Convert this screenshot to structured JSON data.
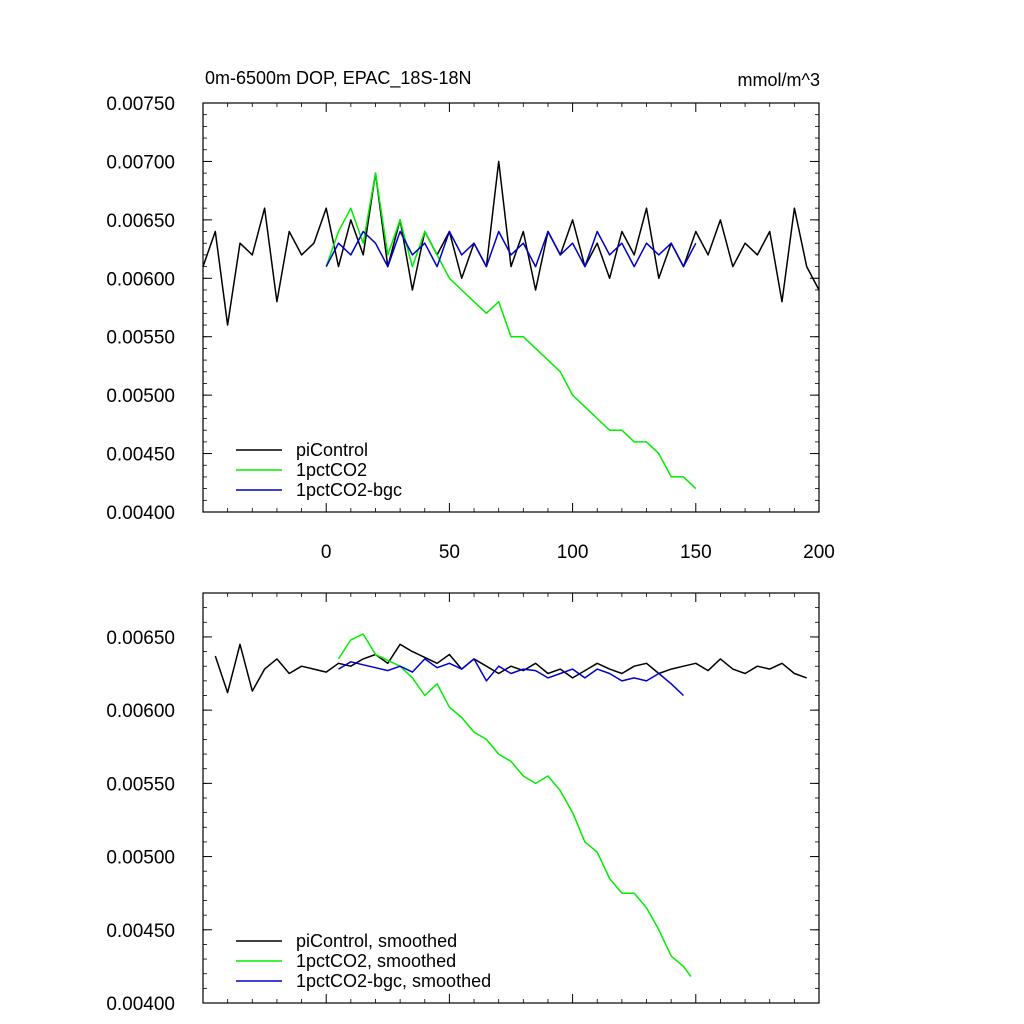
{
  "chart_data": [
    {
      "type": "line",
      "title": "0m-6500m DOP, EPAC_18S-18N",
      "units": "mmol/m^3",
      "xlabel": "",
      "ylabel": "",
      "xlim": [
        -50,
        200
      ],
      "ylim": [
        0.004,
        0.0075
      ],
      "x_ticks": [
        0,
        50,
        100,
        150,
        200
      ],
      "y_ticks": [
        0.004,
        0.0045,
        0.005,
        0.0055,
        0.006,
        0.0065,
        0.007,
        0.0075
      ],
      "y_tick_labels": [
        "0.00400",
        "0.00450",
        "0.00500",
        "0.00550",
        "0.00600",
        "0.00650",
        "0.00700",
        "0.00750"
      ],
      "legend_position": "bottom-left",
      "series": [
        {
          "name": "piControl",
          "color": "#000000",
          "x": [
            -50,
            -45,
            -40,
            -35,
            -30,
            -25,
            -20,
            -15,
            -10,
            -5,
            0,
            5,
            10,
            15,
            20,
            25,
            30,
            35,
            40,
            45,
            50,
            55,
            60,
            65,
            70,
            75,
            80,
            85,
            90,
            95,
            100,
            105,
            110,
            115,
            120,
            125,
            130,
            135,
            140,
            145,
            150,
            155,
            160,
            165,
            170,
            175,
            180,
            185,
            190,
            195,
            200
          ],
          "values": [
            0.0061,
            0.0064,
            0.0056,
            0.0063,
            0.0062,
            0.0066,
            0.0058,
            0.0064,
            0.0062,
            0.0063,
            0.0066,
            0.0061,
            0.0065,
            0.0062,
            0.0069,
            0.0061,
            0.0065,
            0.0059,
            0.0064,
            0.0062,
            0.0064,
            0.006,
            0.0063,
            0.0061,
            0.007,
            0.0061,
            0.0064,
            0.0059,
            0.0064,
            0.0062,
            0.0065,
            0.0061,
            0.0063,
            0.006,
            0.0064,
            0.0062,
            0.0066,
            0.006,
            0.0063,
            0.0061,
            0.0064,
            0.0062,
            0.0065,
            0.0061,
            0.0063,
            0.0062,
            0.0064,
            0.0058,
            0.0066,
            0.0061,
            0.0059
          ]
        },
        {
          "name": "1pctCO2",
          "color": "#00ee00",
          "x": [
            0,
            5,
            10,
            15,
            20,
            25,
            30,
            35,
            40,
            45,
            50,
            55,
            60,
            65,
            70,
            75,
            80,
            85,
            90,
            95,
            100,
            105,
            110,
            115,
            120,
            125,
            130,
            135,
            140,
            145,
            150
          ],
          "values": [
            0.0061,
            0.0064,
            0.0066,
            0.0063,
            0.0069,
            0.0062,
            0.0065,
            0.0061,
            0.0064,
            0.0062,
            0.006,
            0.0059,
            0.0058,
            0.0057,
            0.0058,
            0.0055,
            0.0055,
            0.0054,
            0.0053,
            0.0052,
            0.005,
            0.0049,
            0.0048,
            0.0047,
            0.0047,
            0.0046,
            0.0046,
            0.0045,
            0.0043,
            0.0043,
            0.0042
          ]
        },
        {
          "name": "1pctCO2-bgc",
          "color": "#0000cc",
          "x": [
            0,
            5,
            10,
            15,
            20,
            25,
            30,
            35,
            40,
            45,
            50,
            55,
            60,
            65,
            70,
            75,
            80,
            85,
            90,
            95,
            100,
            105,
            110,
            115,
            120,
            125,
            130,
            135,
            140,
            145,
            150
          ],
          "values": [
            0.0061,
            0.0063,
            0.0062,
            0.0064,
            0.0063,
            0.0061,
            0.0064,
            0.0062,
            0.0063,
            0.0061,
            0.0064,
            0.0062,
            0.0063,
            0.0061,
            0.0064,
            0.0062,
            0.0063,
            0.0061,
            0.0064,
            0.0062,
            0.0063,
            0.0061,
            0.0064,
            0.0062,
            0.0063,
            0.0061,
            0.0063,
            0.0062,
            0.0063,
            0.0061,
            0.0063
          ]
        }
      ]
    },
    {
      "type": "line",
      "title": "",
      "xlabel": "",
      "ylabel": "",
      "xlim": [
        -50,
        200
      ],
      "ylim": [
        0.004,
        0.0068
      ],
      "x_ticks": [
        0,
        50,
        100,
        150,
        200
      ],
      "y_ticks": [
        0.004,
        0.0045,
        0.005,
        0.0055,
        0.006,
        0.0065
      ],
      "y_tick_labels": [
        "0.00400",
        "0.00450",
        "0.00500",
        "0.00550",
        "0.00600",
        "0.00650"
      ],
      "legend_position": "bottom-left",
      "series": [
        {
          "name": "piControl, smoothed",
          "color": "#000000",
          "x": [
            -45,
            -40,
            -35,
            -30,
            -25,
            -20,
            -15,
            -10,
            -5,
            0,
            5,
            10,
            15,
            20,
            25,
            30,
            35,
            40,
            45,
            50,
            55,
            60,
            65,
            70,
            75,
            80,
            85,
            90,
            95,
            100,
            105,
            110,
            115,
            120,
            125,
            130,
            135,
            140,
            145,
            150,
            155,
            160,
            165,
            170,
            175,
            180,
            185,
            190,
            195
          ],
          "values": [
            0.00637,
            0.00612,
            0.00645,
            0.00613,
            0.00628,
            0.00635,
            0.00625,
            0.0063,
            0.00628,
            0.00626,
            0.00632,
            0.0063,
            0.00635,
            0.00638,
            0.00632,
            0.00645,
            0.0064,
            0.00636,
            0.00632,
            0.00638,
            0.00628,
            0.00635,
            0.0063,
            0.00625,
            0.0063,
            0.00627,
            0.00632,
            0.00625,
            0.00628,
            0.00622,
            0.00627,
            0.00632,
            0.00628,
            0.00625,
            0.0063,
            0.00632,
            0.00625,
            0.00628,
            0.0063,
            0.00632,
            0.00627,
            0.00635,
            0.00628,
            0.00625,
            0.0063,
            0.00628,
            0.00632,
            0.00625,
            0.00622
          ]
        },
        {
          "name": "1pctCO2, smoothed",
          "color": "#00ee00",
          "x": [
            5,
            10,
            15,
            20,
            25,
            30,
            35,
            40,
            45,
            50,
            55,
            60,
            65,
            70,
            75,
            80,
            85,
            90,
            95,
            100,
            105,
            110,
            115,
            120,
            125,
            130,
            135,
            140,
            145,
            148
          ],
          "values": [
            0.00635,
            0.00648,
            0.00652,
            0.00638,
            0.00634,
            0.0063,
            0.00622,
            0.0061,
            0.00618,
            0.00602,
            0.00595,
            0.00585,
            0.0058,
            0.0057,
            0.00565,
            0.00555,
            0.0055,
            0.00555,
            0.00545,
            0.0053,
            0.0051,
            0.00503,
            0.00485,
            0.00475,
            0.00475,
            0.00465,
            0.0045,
            0.00432,
            0.00425,
            0.00418
          ]
        },
        {
          "name": "1pctCO2-bgc, smoothed",
          "color": "#0000cc",
          "x": [
            5,
            10,
            15,
            20,
            25,
            30,
            35,
            40,
            45,
            50,
            55,
            60,
            65,
            70,
            75,
            80,
            85,
            90,
            95,
            100,
            105,
            110,
            115,
            120,
            125,
            130,
            135,
            140,
            145
          ],
          "values": [
            0.00628,
            0.00633,
            0.00631,
            0.00629,
            0.00627,
            0.0063,
            0.00626,
            0.00635,
            0.00629,
            0.00632,
            0.00628,
            0.00635,
            0.0062,
            0.0063,
            0.00625,
            0.00628,
            0.00627,
            0.00622,
            0.00625,
            0.00628,
            0.00622,
            0.00628,
            0.00625,
            0.0062,
            0.00622,
            0.0062,
            0.00625,
            0.00618,
            0.0061
          ]
        }
      ]
    }
  ]
}
